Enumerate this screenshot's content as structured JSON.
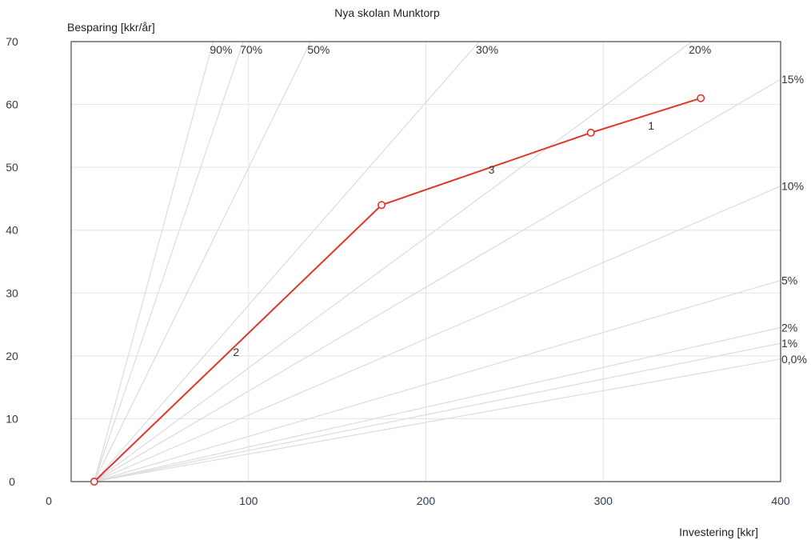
{
  "chart_data": {
    "type": "line",
    "title": "Nya skolan Munktorp",
    "xlabel": "Investering [kkr]",
    "ylabel": "Besparing [kkr/år]",
    "xlim": [
      0,
      400
    ],
    "ylim": [
      0,
      70
    ],
    "x_ticks": [
      0,
      100,
      200,
      300,
      400
    ],
    "y_ticks": [
      0,
      10,
      20,
      30,
      40,
      50,
      60,
      70
    ],
    "grid": true,
    "origin": [
      13,
      0
    ],
    "series": [
      {
        "color": "#e0352b",
        "x": [
          13,
          175,
          293,
          355
        ],
        "y": [
          0,
          44,
          55.5,
          61
        ]
      }
    ],
    "segment_labels": [
      {
        "text": "2",
        "x": 93,
        "y": 20
      },
      {
        "text": "3",
        "x": 237,
        "y": 49
      },
      {
        "text": "1",
        "x": 327,
        "y": 56
      }
    ],
    "reference_lines": [
      {
        "label": "90%",
        "end_x": 80,
        "end_y": 70
      },
      {
        "label": "70%",
        "end_x": 97,
        "end_y": 70
      },
      {
        "label": "50%",
        "end_x": 135,
        "end_y": 70
      },
      {
        "label": "30%",
        "end_x": 230,
        "end_y": 70
      },
      {
        "label": "20%",
        "end_x": 350,
        "end_y": 70
      },
      {
        "label": "15%",
        "end_x": 400,
        "end_y": 64
      },
      {
        "label": "10%",
        "end_x": 400,
        "end_y": 47
      },
      {
        "label": "5%",
        "end_x": 400,
        "end_y": 32
      },
      {
        "label": "2%",
        "end_x": 400,
        "end_y": 24.5
      },
      {
        "label": "1%",
        "end_x": 400,
        "end_y": 22
      },
      {
        "label": "0,0%",
        "end_x": 400,
        "end_y": 19.5
      }
    ],
    "colors": {
      "line": "#e0352b",
      "grid": "#e3e3e3",
      "reference": "#dcdcdc",
      "frame": "#555555"
    }
  }
}
